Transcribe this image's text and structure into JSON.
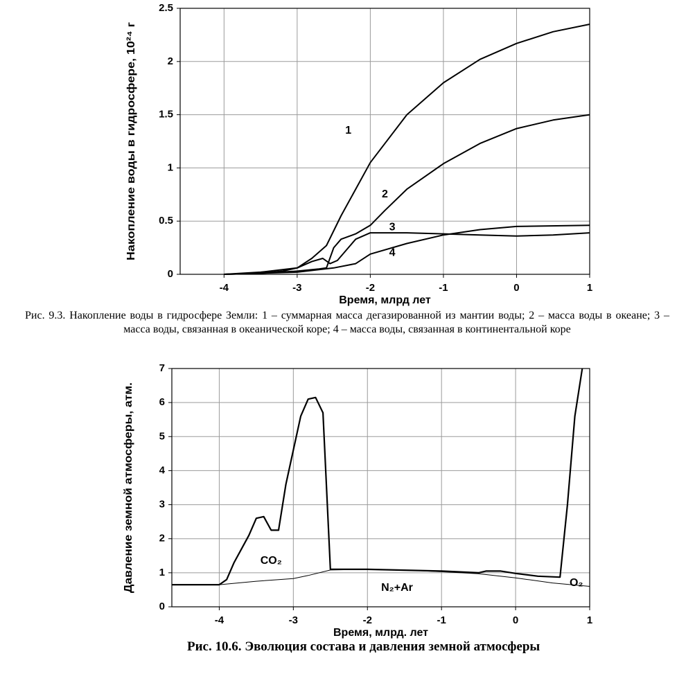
{
  "chart_data": [
    {
      "type": "line",
      "x_label": "Время, млрд лет",
      "y_label": "Накопление воды в гидросфере, 10²⁴ г",
      "caption": "Рис. 9.3. Накопление воды в гидросфере Земли: 1 – суммарная масса дегазированной из мантии воды; 2 – масса воды в океане; 3 – масса воды, связанная в океанической коре; 4 – масса воды, связанная в континентальной коре",
      "xlim": [
        -4.6,
        1
      ],
      "ylim": [
        0,
        2.5
      ],
      "xticks": [
        -4,
        -3,
        -2,
        -1,
        0,
        1
      ],
      "yticks": [
        0,
        0.5,
        1,
        1.5,
        2,
        2.5
      ],
      "grid": true,
      "series": [
        {
          "color": "#000000",
          "width": 2,
          "x": [
            -4,
            -3.5,
            -3.2,
            -3,
            -2.8,
            -2.6,
            -2.4,
            -2.2,
            -2,
            -1.5,
            -1,
            -0.5,
            0,
            0.5,
            1
          ],
          "values": [
            0,
            0.01,
            0.03,
            0.06,
            0.15,
            0.27,
            0.55,
            0.8,
            1.05,
            1.5,
            1.8,
            2.02,
            2.17,
            2.28,
            2.35
          ]
        },
        {
          "color": "#000000",
          "width": 2,
          "x": [
            -4,
            -3.5,
            -3,
            -2.7,
            -2.6,
            -2.5,
            -2.4,
            -2.2,
            -2,
            -1.8,
            -1.5,
            -1,
            -0.5,
            0,
            0.5,
            1
          ],
          "values": [
            0,
            0.01,
            0.03,
            0.05,
            0.06,
            0.25,
            0.33,
            0.38,
            0.46,
            0.6,
            0.8,
            1.04,
            1.23,
            1.37,
            1.45,
            1.5
          ]
        },
        {
          "color": "#000000",
          "width": 2,
          "x": [
            -4,
            -3.5,
            -3,
            -2.8,
            -2.65,
            -2.55,
            -2.45,
            -2.3,
            -2.2,
            -2,
            -1.5,
            -1,
            -0.5,
            0,
            0.5,
            1
          ],
          "values": [
            0,
            0.02,
            0.06,
            0.12,
            0.15,
            0.1,
            0.13,
            0.25,
            0.33,
            0.39,
            0.39,
            0.38,
            0.37,
            0.36,
            0.37,
            0.39
          ]
        },
        {
          "color": "#000000",
          "width": 2,
          "x": [
            -4,
            -3,
            -2.5,
            -2.2,
            -2,
            -1.5,
            -1,
            -0.5,
            0,
            1
          ],
          "values": [
            0,
            0.02,
            0.06,
            0.1,
            0.19,
            0.29,
            0.37,
            0.42,
            0.45,
            0.46
          ]
        }
      ],
      "annotations": [
        {
          "text": "1",
          "x": -2.3,
          "y": 1.35
        },
        {
          "text": "2",
          "x": -1.8,
          "y": 0.75
        },
        {
          "text": "3",
          "x": -1.7,
          "y": 0.44
        },
        {
          "text": "4",
          "x": -1.7,
          "y": 0.2
        }
      ]
    },
    {
      "type": "line",
      "x_label": "Время, млрд. лет",
      "y_label": "Давление земной атмосферы, атм.",
      "caption": "Рис. 10.6. Эволюция состава и давления земной атмосферы",
      "xlim": [
        -4.64,
        1
      ],
      "ylim": [
        0,
        7
      ],
      "xticks": [
        -4,
        -3,
        -2,
        -1,
        0,
        1
      ],
      "yticks": [
        0,
        1,
        2,
        3,
        4,
        5,
        6,
        7
      ],
      "grid": true,
      "series": [
        {
          "color": "#000000",
          "width": 2.2,
          "x": [
            -4.64,
            -4,
            -3.9,
            -3.8,
            -3.6,
            -3.5,
            -3.4,
            -3.3,
            -3.2,
            -3.1,
            -3,
            -2.9,
            -2.8,
            -2.7,
            -2.6,
            -2.5,
            -2,
            -1,
            -0.5,
            -0.4,
            -0.2,
            0,
            0.3,
            0.6,
            0.7,
            0.8,
            0.9
          ],
          "values": [
            0.65,
            0.65,
            0.8,
            1.3,
            2.1,
            2.6,
            2.65,
            2.25,
            2.25,
            3.6,
            4.6,
            5.6,
            6.1,
            6.15,
            5.7,
            1.1,
            1.1,
            1.05,
            1.0,
            1.05,
            1.05,
            0.98,
            0.9,
            0.87,
            3,
            5.6,
            7
          ]
        },
        {
          "color": "#000000",
          "width": 1,
          "x": [
            -4.64,
            -4,
            -3.5,
            -3,
            -2.8,
            -2.5,
            -2,
            -1.5,
            -1,
            -0.5,
            0,
            0.5,
            1
          ],
          "values": [
            0.65,
            0.65,
            0.75,
            0.83,
            0.92,
            1.08,
            1.1,
            1.08,
            1.03,
            0.97,
            0.85,
            0.7,
            0.6
          ]
        }
      ],
      "annotations": [
        {
          "text": "CO₂",
          "x": -3.3,
          "y": 1.35
        },
        {
          "text": "N₂+Ar",
          "x": -1.6,
          "y": 0.55
        },
        {
          "text": "O₂",
          "x": 0.82,
          "y": 0.7
        }
      ]
    }
  ]
}
